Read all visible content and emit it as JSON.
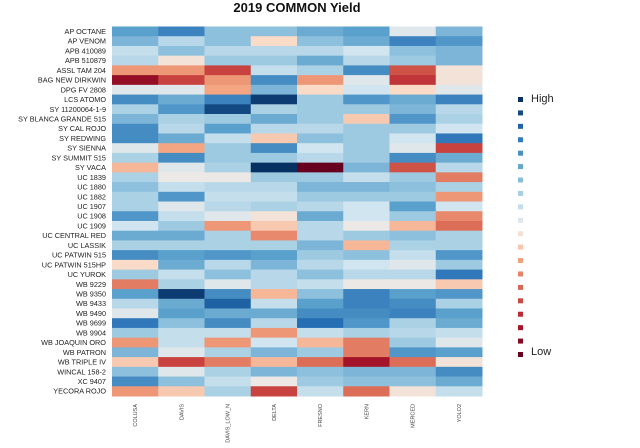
{
  "chart_data": {
    "type": "heatmap",
    "title": "2019 COMMON Yield",
    "columns": [
      "COLUSA",
      "DAVIS",
      "DAVIS_LOW_N",
      "DELTA",
      "FRESNO",
      "KERN",
      "MERCED",
      "YOLO2"
    ],
    "rows": [
      "AP OCTANE",
      "AP VENOM",
      "APB 410089",
      "APB 510879",
      "ASSL TAM 204",
      "BAG NEW DIRKWIN",
      "DPG FV 2808",
      "LCS ATOMO",
      "SY 11200064-1-9",
      "SY BLANCA GRANDE 515",
      "SY CAL ROJO",
      "SY REDWING",
      "SY SIENNA",
      "SY SUMMIT 515",
      "SY VACA",
      "UC 1839",
      "UC 1880",
      "UC 1882",
      "UC 1907",
      "UC 1908",
      "UC 1909",
      "UC CENTRAL RED",
      "UC LASSIK",
      "UC PATWIN 515",
      "UC PATWIN 515HP",
      "UC YUROK",
      "WB 9229",
      "WB 9350",
      "WB 9433",
      "WB 9490",
      "WB 9699",
      "WB 9904",
      "WB JOAQUIN ORO",
      "WB PATRON",
      "WB TRIPLE IV",
      "WINCAL 158-2",
      "XC 9407",
      "YECORA ROJO"
    ],
    "value_range": [
      -1,
      1
    ],
    "colormap": "red (low) - white - blue (high)",
    "values": [
      [
        0.5,
        0.65,
        0.35,
        0.35,
        0.45,
        0.5,
        0.05,
        0.4
      ],
      [
        0.4,
        0.2,
        0.35,
        -0.1,
        0.35,
        0.45,
        0.65,
        0.55
      ],
      [
        0.15,
        0.35,
        0.2,
        0.2,
        0.2,
        0.1,
        0.35,
        0.4
      ],
      [
        0.2,
        -0.05,
        0.3,
        0.3,
        0.45,
        0.2,
        0.3,
        0.4
      ],
      [
        -0.3,
        -0.3,
        -0.6,
        0.15,
        0.25,
        0.6,
        -0.55,
        -0.05
      ],
      [
        -0.85,
        -0.6,
        -0.3,
        0.6,
        -0.3,
        0.05,
        -0.65,
        -0.05
      ],
      [
        0.05,
        0.05,
        -0.25,
        0.4,
        -0.1,
        0.1,
        -0.1,
        0.05
      ],
      [
        0.6,
        0.45,
        0.65,
        0.95,
        0.3,
        0.55,
        0.45,
        0.65
      ],
      [
        0.25,
        0.55,
        0.9,
        0.25,
        0.3,
        0.3,
        0.4,
        0.2
      ],
      [
        0.4,
        0.25,
        0.3,
        0.45,
        0.3,
        -0.15,
        0.55,
        0.25
      ],
      [
        0.6,
        0.2,
        0.5,
        0.2,
        0.2,
        0.3,
        0.3,
        0.1
      ],
      [
        0.6,
        0.45,
        0.15,
        -0.15,
        0.35,
        0.3,
        0.1,
        0.7
      ],
      [
        0.05,
        -0.25,
        0.3,
        0.6,
        0.1,
        0.3,
        0.05,
        -0.6
      ],
      [
        0.25,
        0.6,
        0.3,
        0.3,
        0.2,
        0.3,
        0.6,
        0.45
      ],
      [
        -0.2,
        0.05,
        0.25,
        1.0,
        -1.0,
        0.4,
        -0.55,
        0.2
      ],
      [
        0.25,
        0.0,
        0.0,
        0.3,
        0.3,
        0.15,
        0.3,
        -0.4
      ],
      [
        0.35,
        0.15,
        0.2,
        0.2,
        0.4,
        0.4,
        0.35,
        0.25
      ],
      [
        0.25,
        0.55,
        0.15,
        0.15,
        0.3,
        0.3,
        0.3,
        -0.3
      ],
      [
        0.25,
        0.05,
        0.2,
        0.25,
        0.2,
        0.1,
        0.5,
        0.1
      ],
      [
        0.55,
        0.15,
        0.05,
        -0.05,
        0.45,
        0.1,
        0.3,
        -0.35
      ],
      [
        0.1,
        0.3,
        -0.3,
        -0.15,
        0.2,
        0.0,
        -0.2,
        -0.45
      ],
      [
        0.45,
        0.45,
        0.25,
        -0.35,
        0.2,
        0.3,
        0.35,
        0.25
      ],
      [
        0.25,
        0.25,
        0.25,
        0.25,
        0.4,
        -0.2,
        0.25,
        0.25
      ],
      [
        0.6,
        0.5,
        0.55,
        0.5,
        0.3,
        0.35,
        0.15,
        0.55
      ],
      [
        -0.1,
        0.45,
        0.2,
        0.4,
        0.2,
        0.1,
        0.05,
        0.3
      ],
      [
        0.3,
        0.15,
        0.35,
        0.2,
        0.35,
        0.2,
        0.2,
        0.7
      ],
      [
        -0.4,
        0.25,
        0.05,
        0.2,
        0.15,
        0.0,
        0.0,
        -0.15
      ],
      [
        0.5,
        0.95,
        0.6,
        -0.2,
        0.35,
        0.65,
        0.5,
        0.55
      ],
      [
        0.2,
        0.45,
        0.8,
        0.15,
        0.5,
        0.65,
        0.6,
        0.25
      ],
      [
        0.05,
        0.5,
        0.45,
        0.45,
        0.6,
        0.6,
        0.65,
        0.5
      ],
      [
        0.7,
        0.35,
        0.6,
        0.2,
        0.75,
        0.55,
        0.25,
        0.45
      ],
      [
        0.3,
        0.15,
        0.15,
        -0.3,
        0.15,
        0.25,
        0.2,
        0.15
      ],
      [
        -0.3,
        0.15,
        -0.3,
        0.1,
        -0.2,
        -0.4,
        0.3,
        0.05
      ],
      [
        0.4,
        0.05,
        0.25,
        0.4,
        0.3,
        -0.4,
        0.55,
        0.5
      ],
      [
        -0.15,
        -0.6,
        -0.4,
        -0.2,
        -0.45,
        -0.8,
        -0.45,
        -0.05
      ],
      [
        0.35,
        0.05,
        0.25,
        0.4,
        0.35,
        0.4,
        0.4,
        0.6
      ],
      [
        0.6,
        0.35,
        0.15,
        0.0,
        0.3,
        0.35,
        0.35,
        0.45
      ],
      [
        -0.3,
        -0.15,
        0.25,
        -0.6,
        0.15,
        -0.45,
        -0.05,
        0.15
      ]
    ],
    "legend": {
      "high_label": "High",
      "low_label": "Low",
      "placement": "right",
      "steps": 20
    }
  }
}
